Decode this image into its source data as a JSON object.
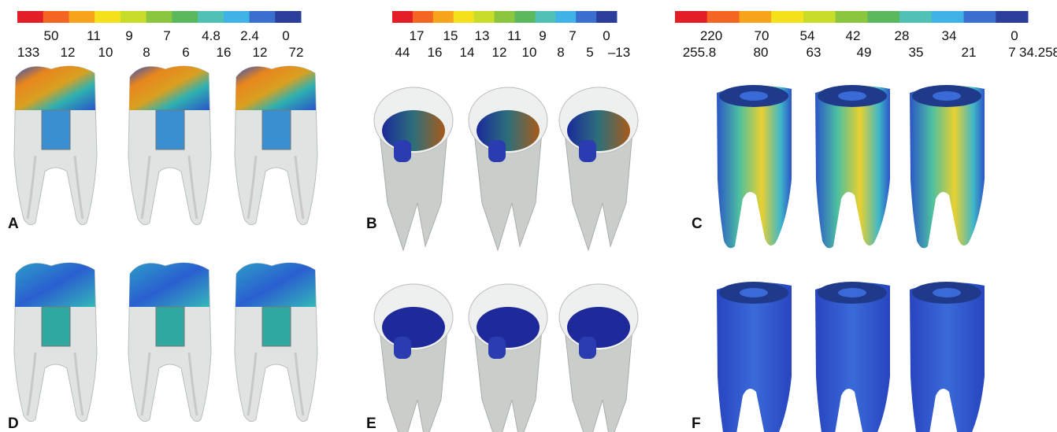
{
  "colorbars": [
    {
      "top_labels": [
        "50",
        "11",
        "9",
        "7",
        "4.8",
        "2.4",
        "0"
      ],
      "bottom_labels": [
        "133",
        "12",
        "10",
        "8",
        "6",
        "16",
        "12",
        "72"
      ]
    },
    {
      "top_labels": [
        "17",
        "15",
        "13",
        "11",
        "9",
        "7",
        "0"
      ],
      "bottom_labels": [
        "44",
        "16",
        "14",
        "12",
        "10",
        "8",
        "5",
        "–13"
      ]
    },
    {
      "top_labels": [
        "220",
        "70",
        "54",
        "42",
        "28",
        "34",
        "0"
      ],
      "bottom_labels": [
        "255.8",
        "80",
        "63",
        "49",
        "35",
        "21",
        "7",
        "34.258"
      ]
    }
  ],
  "panels": [
    "A",
    "B",
    "C",
    "D",
    "E",
    "F"
  ]
}
